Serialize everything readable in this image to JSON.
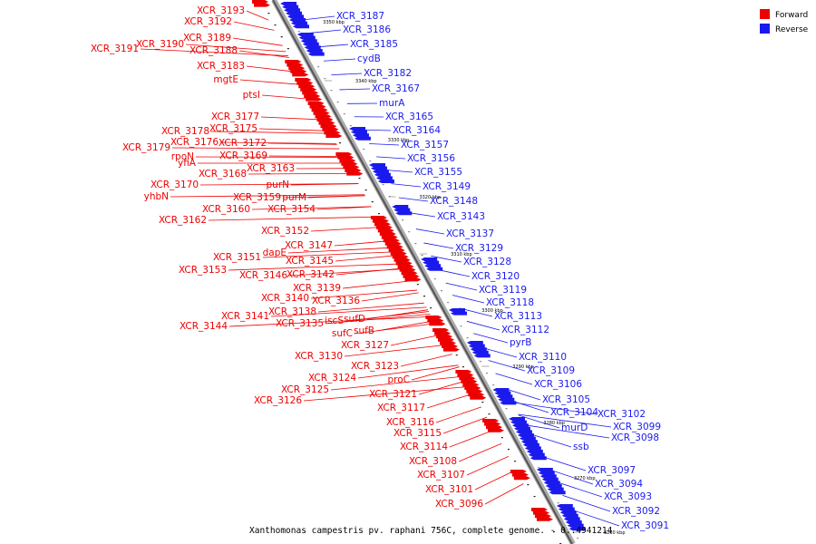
{
  "caption": "Xanthomonas campestris pv. raphani 756C, complete genome. - 0..4941214",
  "legend": {
    "forward": {
      "label": "Forward",
      "color": "#ee0000"
    },
    "reverse": {
      "label": "Reverse",
      "color": "#1a1aee"
    }
  },
  "ticks": [
    "3350 kbp",
    "3340 kbp",
    "3330 kbp",
    "3320 kbp",
    "3310 kbp",
    "3300 kbp",
    "3290 kbp",
    "3280 kbp",
    "3270 kbp",
    "3260 kbp"
  ],
  "forward_genes": [
    "XCR_3193",
    "XCR_3192",
    "XCR_3191",
    "XCR_3190",
    "XCR_3189",
    "XCR_3188",
    "XCR_3183",
    "mgtE",
    "ptsI",
    "XCR_3177",
    "XCR_3178",
    "XCR_3175",
    "XCR_3176",
    "XCR_3172",
    "XCR_3179",
    "rpoN",
    "XCR_3169",
    "yfiA",
    "XCR_3168",
    "XCR_3163",
    "XCR_3170",
    "purN",
    "yhbN",
    "XCR_3159",
    "purM",
    "XCR_3160",
    "XCR_3154",
    "XCR_3162",
    "XCR_3152",
    "dapE",
    "XCR_3147",
    "XCR_3151",
    "XCR_3145",
    "XCR_3153",
    "XCR_3146",
    "XCR_3142",
    "XCR_3139",
    "XCR_3140",
    "XCR_3136",
    "XCR_3138",
    "XCR_3141",
    "iscS",
    "sufD",
    "XCR_3135",
    "XCR_3144",
    "sufC",
    "sufB",
    "XCR_3127",
    "XCR_3130",
    "XCR_3123",
    "XCR_3124",
    "proC",
    "XCR_3125",
    "XCR_3121",
    "XCR_3126",
    "XCR_3117",
    "XCR_3116",
    "XCR_3115",
    "XCR_3114",
    "XCR_3108",
    "XCR_3107",
    "XCR_3101",
    "XCR_3096"
  ],
  "reverse_genes": [
    "XCR_3187",
    "XCR_3186",
    "XCR_3185",
    "cydB",
    "XCR_3182",
    "XCR_3167",
    "murA",
    "XCR_3165",
    "XCR_3164",
    "XCR_3157",
    "XCR_3156",
    "XCR_3155",
    "XCR_3149",
    "XCR_3148",
    "XCR_3143",
    "XCR_3137",
    "XCR_3129",
    "XCR_3128",
    "XCR_3120",
    "XCR_3119",
    "XCR_3118",
    "XCR_3113",
    "XCR_3112",
    "pyrB",
    "XCR_3110",
    "XCR_3109",
    "XCR_3106",
    "XCR_3105",
    "XCR_3104",
    "XCR_3102",
    "murD",
    "XCR_3099",
    "XCR_3098",
    "ssb",
    "XCR_3097",
    "XCR_3094",
    "XCR_3093",
    "XCR_3092",
    "XCR_3091"
  ]
}
